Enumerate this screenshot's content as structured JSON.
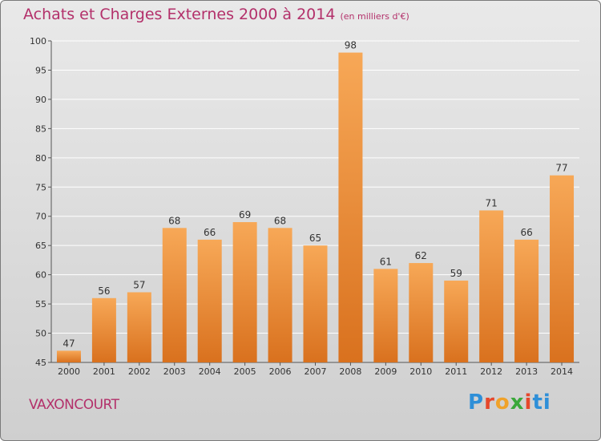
{
  "header": {
    "title": "Achats et Charges Externes 2000 à 2014",
    "unit": "(en milliers d'€)"
  },
  "footer": {
    "place": "VAXONCOURT",
    "brand": [
      "P",
      "r",
      "o",
      "x",
      "i",
      "ti"
    ]
  },
  "colors": {
    "title": "#b3306a",
    "bar_light": "#f7a857",
    "bar_dark": "#d9711e",
    "background": "#dcdcdc"
  },
  "chart_data": {
    "type": "bar",
    "title": "Achats et Charges Externes 2000 à 2014",
    "categories": [
      "2000",
      "2001",
      "2002",
      "2003",
      "2004",
      "2005",
      "2006",
      "2007",
      "2008",
      "2009",
      "2010",
      "2011",
      "2012",
      "2013",
      "2014"
    ],
    "values": [
      47,
      56,
      57,
      68,
      66,
      69,
      68,
      65,
      98,
      61,
      62,
      59,
      71,
      66,
      77
    ],
    "ylim": [
      45,
      100
    ],
    "yticks": [
      45,
      50,
      55,
      60,
      65,
      70,
      75,
      80,
      85,
      90,
      95,
      100
    ],
    "grid": true,
    "xlabel": "",
    "ylabel": ""
  }
}
